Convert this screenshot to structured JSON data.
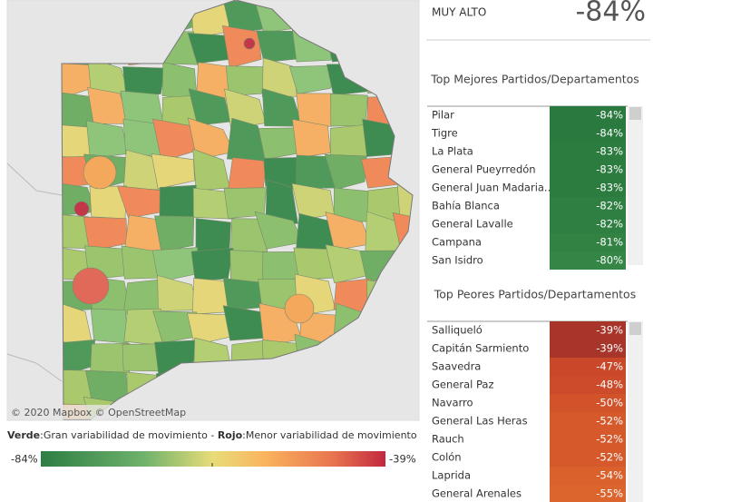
{
  "kpi": {
    "label": "MUY ALTO",
    "value": "-84%"
  },
  "best": {
    "title": "Top Mejores Partidos/Departamentos",
    "rows": [
      {
        "name": "Pilar",
        "value": "-84%",
        "color": "#2a7a3f"
      },
      {
        "name": "Tigre",
        "value": "-84%",
        "color": "#2a7a3f"
      },
      {
        "name": "La Plata",
        "value": "-83%",
        "color": "#2c7c40"
      },
      {
        "name": "General Pueyrredón",
        "value": "-83%",
        "color": "#2c7c40"
      },
      {
        "name": "General Juan Madaria..",
        "value": "-83%",
        "color": "#2c7c40"
      },
      {
        "name": "Bahía Blanca",
        "value": "-82%",
        "color": "#2f7f42"
      },
      {
        "name": "General Lavalle",
        "value": "-82%",
        "color": "#2f7f42"
      },
      {
        "name": "Campana",
        "value": "-81%",
        "color": "#328244"
      },
      {
        "name": "San Isidro",
        "value": "-80%",
        "color": "#358546"
      }
    ]
  },
  "worst": {
    "title": "Top Peores Partidos/Departamentos",
    "rows": [
      {
        "name": "Salliqueló",
        "value": "-39%",
        "color": "#a8352a"
      },
      {
        "name": "Capitán Sarmiento",
        "value": "-39%",
        "color": "#a8352a"
      },
      {
        "name": "Saavedra",
        "value": "-47%",
        "color": "#c9482a"
      },
      {
        "name": "General Paz",
        "value": "-48%",
        "color": "#cc4b2a"
      },
      {
        "name": "Navarro",
        "value": "-50%",
        "color": "#d2522a"
      },
      {
        "name": "General Las Heras",
        "value": "-52%",
        "color": "#d6592b"
      },
      {
        "name": "Rauch",
        "value": "-52%",
        "color": "#d6592b"
      },
      {
        "name": "Colón",
        "value": "-52%",
        "color": "#d6592b"
      },
      {
        "name": "Laprida",
        "value": "-54%",
        "color": "#da602c"
      },
      {
        "name": "General Arenales",
        "value": "-55%",
        "color": "#dc642d"
      }
    ]
  },
  "map": {
    "attribution": "© 2020 Mapbox © OpenStreetMap"
  },
  "legend": {
    "green_word": "Verde",
    "green_text": ":Gran variabilidad de movimiento - ",
    "red_word": "Rojo",
    "red_text": ":Menor variabilidad de movimiento",
    "min": "-84%",
    "max": "-39%"
  }
}
